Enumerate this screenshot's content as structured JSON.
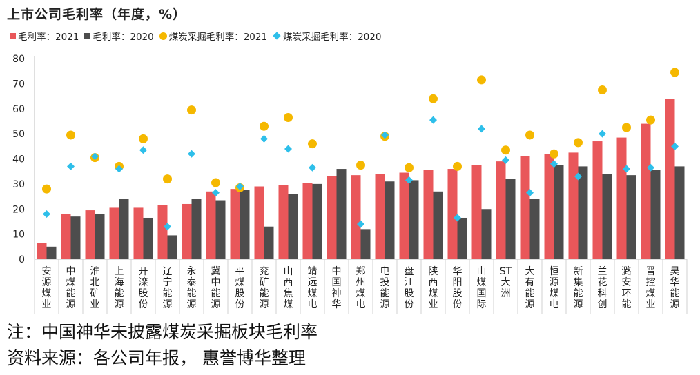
{
  "chart_data": {
    "type": "bar",
    "title": "上市公司毛利率（年度，%）",
    "categories": [
      "安源煤业",
      "中煤能源",
      "淮北矿业",
      "上海能源",
      "开滦股份",
      "辽宁能源",
      "永泰能源",
      "冀中能源",
      "平煤股份",
      "兖矿能源",
      "山西焦煤",
      "靖远煤电",
      "中国神华",
      "郑州煤电",
      "电投能源",
      "盘江股份",
      "陕西煤业",
      "华阳股份",
      "山煤国际",
      "ST大洲",
      "大有能源",
      "恒源煤电",
      "新集能源",
      "兰花科创",
      "潞安环能",
      "晋控煤业",
      "昊华能源"
    ],
    "series": [
      {
        "name": "毛利率：2021",
        "kind": "bar",
        "color": "#E9575A",
        "values": [
          6.5,
          18,
          19.5,
          20.5,
          20.5,
          21.5,
          22,
          27,
          28,
          29,
          29.5,
          30.5,
          33,
          33.5,
          34,
          34.5,
          35.5,
          36,
          37.5,
          39,
          41,
          42,
          42.5,
          47,
          48.5,
          54,
          64
        ]
      },
      {
        "name": "毛利率：2020",
        "kind": "bar",
        "color": "#4D4D4D",
        "values": [
          5,
          17,
          18,
          24,
          16.5,
          9.5,
          24,
          23.5,
          27.5,
          13,
          26,
          30,
          36,
          12,
          31,
          31.5,
          27,
          16.5,
          20,
          32,
          24,
          37.5,
          37,
          34,
          33.5,
          35.5,
          37
        ]
      },
      {
        "name": "煤炭采掘毛利率：2021",
        "kind": "dot",
        "color": "#F5B800",
        "values": [
          28,
          49.5,
          40.5,
          37,
          48,
          32,
          59.5,
          30.5,
          28.5,
          53,
          56.5,
          46,
          null,
          37.5,
          49,
          36.5,
          64,
          37,
          71.5,
          43.5,
          49.5,
          42,
          46.5,
          67.5,
          52.5,
          55.5,
          74.5
        ]
      },
      {
        "name": "煤炭采掘毛利率：2020",
        "kind": "diamond",
        "color": "#2EBFEA",
        "values": [
          18,
          37,
          41,
          36,
          43.5,
          13,
          42,
          26.5,
          29,
          48,
          44,
          36.5,
          null,
          14,
          49.5,
          31.5,
          55.5,
          16.5,
          52,
          39.5,
          26.5,
          38,
          33,
          50,
          36,
          36.5,
          45
        ]
      }
    ],
    "ylim": [
      0,
      80
    ],
    "yticks": [
      0,
      10,
      20,
      30,
      40,
      50,
      60,
      70,
      80
    ],
    "grid": false,
    "legend": "top-left"
  },
  "notes": {
    "note1": "注：中国神华未披露煤炭采掘板块毛利率",
    "note2": "资料来源：各公司年报， 惠誉博华整理"
  }
}
